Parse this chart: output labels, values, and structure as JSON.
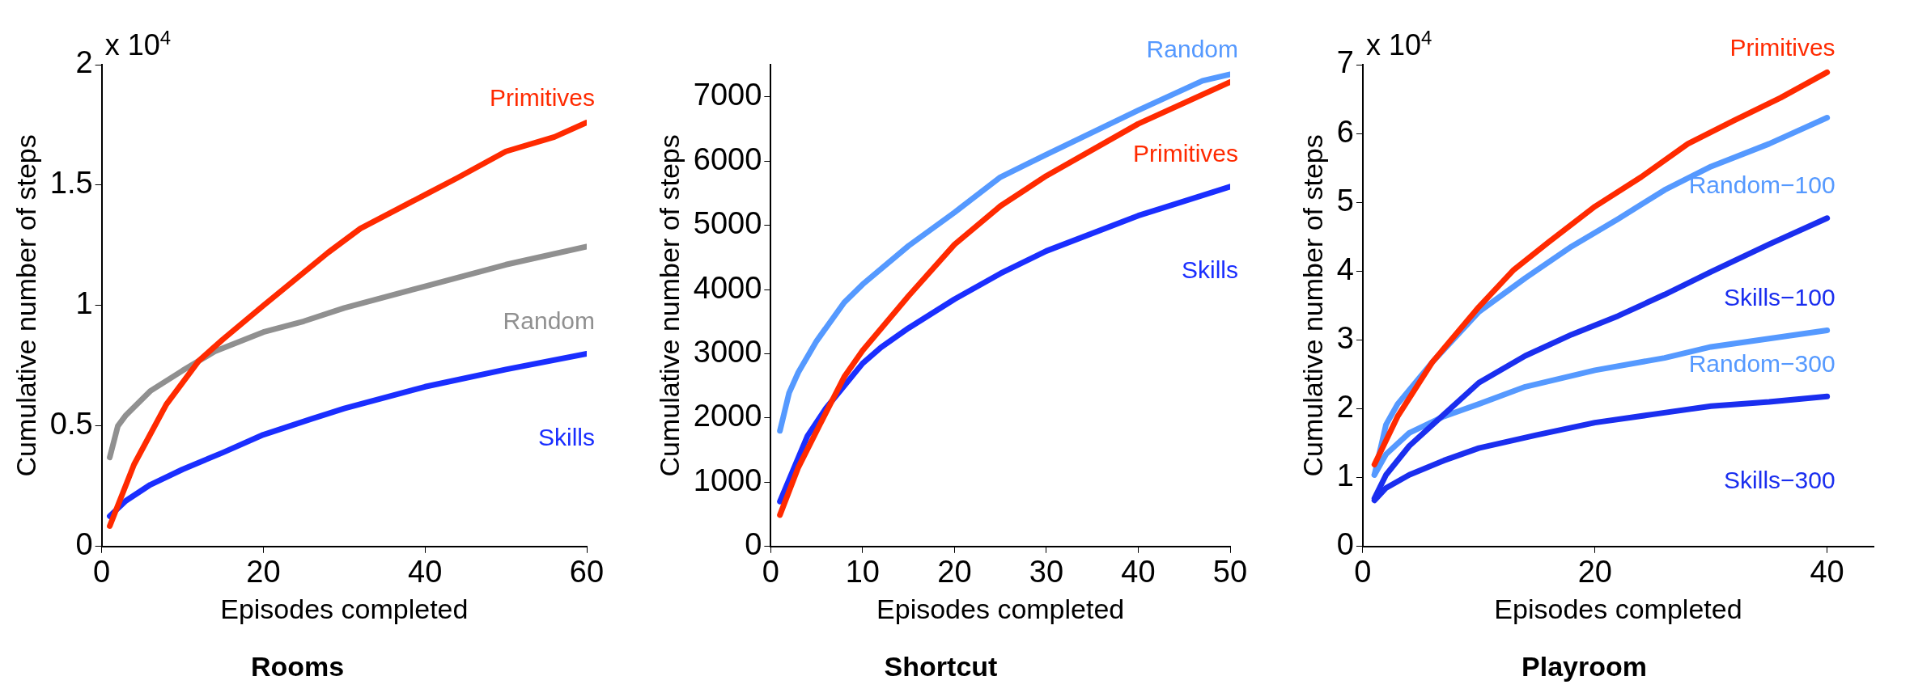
{
  "chart_data": [
    {
      "type": "line",
      "title": "Rooms",
      "xlabel": "Episodes completed",
      "ylabel": "Cumulative number of steps",
      "annotations": [
        "x 10$^{4}$"
      ],
      "xlim": [
        0,
        60
      ],
      "xticks": [
        0,
        20,
        40,
        60
      ],
      "ylim": [
        0,
        2
      ],
      "yticks": [
        0,
        0.5,
        1,
        1.5,
        2
      ],
      "series": [
        {
          "name": "Primitives",
          "color": "#ff2a00",
          "x": [
            1,
            4,
            8,
            12,
            15,
            20,
            28,
            32,
            40,
            44,
            50,
            56,
            60
          ],
          "values": [
            0.085,
            0.34,
            0.59,
            0.77,
            0.86,
            1.0,
            1.22,
            1.32,
            1.46,
            1.53,
            1.64,
            1.7,
            1.76
          ]
        },
        {
          "name": "Random",
          "color": "#909090",
          "x": [
            1,
            2,
            3,
            6,
            10,
            14,
            20,
            25,
            30,
            40,
            50,
            60
          ],
          "values": [
            0.37,
            0.5,
            0.545,
            0.645,
            0.73,
            0.81,
            0.89,
            0.935,
            0.99,
            1.08,
            1.17,
            1.245
          ]
        },
        {
          "name": "Skills",
          "color": "#1a2eff",
          "x": [
            1,
            3,
            6,
            10,
            15,
            20,
            26,
            30,
            40,
            50,
            60
          ],
          "values": [
            0.126,
            0.19,
            0.256,
            0.32,
            0.39,
            0.464,
            0.53,
            0.573,
            0.663,
            0.735,
            0.8
          ]
        }
      ]
    },
    {
      "type": "line",
      "title": "Shortcut",
      "xlabel": "Episodes completed",
      "ylabel": "Cumulative number of steps",
      "xlim": [
        0,
        50
      ],
      "xticks": [
        0,
        10,
        20,
        30,
        40,
        50
      ],
      "ylim": [
        0,
        7500
      ],
      "yticks": [
        0,
        1000,
        2000,
        3000,
        4000,
        5000,
        6000,
        7000
      ],
      "series": [
        {
          "name": "Random",
          "color": "#5599ff",
          "x": [
            1,
            2,
            3,
            5,
            8,
            10,
            15,
            20,
            25,
            30,
            40,
            47,
            50
          ],
          "values": [
            1800,
            2390,
            2710,
            3200,
            3800,
            4080,
            4680,
            5200,
            5750,
            6100,
            6790,
            7250,
            7350
          ]
        },
        {
          "name": "Primitives",
          "color": "#ff2a00",
          "x": [
            1,
            3,
            5,
            8,
            10,
            15,
            20,
            25,
            30,
            40,
            50
          ],
          "values": [
            490,
            1230,
            1800,
            2640,
            3050,
            3900,
            4700,
            5300,
            5770,
            6580,
            7230
          ]
        },
        {
          "name": "Skills",
          "color": "#1a2eff",
          "x": [
            1,
            4,
            6,
            10,
            12,
            15,
            20,
            25,
            30,
            40,
            50
          ],
          "values": [
            700,
            1720,
            2150,
            2850,
            3100,
            3400,
            3850,
            4250,
            4600,
            5150,
            5600
          ]
        }
      ]
    },
    {
      "type": "line",
      "title": "Playroom",
      "xlabel": "Episodes completed",
      "ylabel": "Cumulative number of steps",
      "annotations": [
        "x 10$^{4}$"
      ],
      "xlim": [
        0,
        44
      ],
      "xticks": [
        0,
        20,
        40
      ],
      "ylim": [
        0,
        7
      ],
      "yticks": [
        0,
        1,
        2,
        3,
        4,
        5,
        6,
        7
      ],
      "series": [
        {
          "name": "Primitives",
          "color": "#ff2a00",
          "x": [
            1,
            3,
            6,
            10,
            13,
            16,
            20,
            24,
            28,
            32,
            36,
            40
          ],
          "values": [
            1.19,
            1.89,
            2.68,
            3.48,
            4.02,
            4.42,
            4.94,
            5.37,
            5.85,
            6.19,
            6.52,
            6.89
          ]
        },
        {
          "name": "Random−100",
          "color": "#5599ff",
          "x": [
            1,
            2,
            3,
            6,
            10,
            14,
            18,
            22,
            26,
            30,
            35,
            40
          ],
          "values": [
            1.04,
            1.77,
            2.07,
            2.68,
            3.41,
            3.9,
            4.36,
            4.76,
            5.18,
            5.52,
            5.85,
            6.23
          ]
        },
        {
          "name": "Skills−100",
          "color": "#1a2eef",
          "x": [
            1,
            2,
            4,
            7,
            10,
            14,
            18,
            22,
            26,
            30,
            35,
            40
          ],
          "values": [
            0.7,
            1.04,
            1.46,
            1.92,
            2.38,
            2.77,
            3.08,
            3.35,
            3.66,
            3.99,
            4.39,
            4.77
          ]
        },
        {
          "name": "Random−300",
          "color": "#5599ff",
          "x": [
            1,
            2,
            4,
            7,
            10,
            14,
            20,
            26,
            30,
            35,
            40
          ],
          "values": [
            1.04,
            1.34,
            1.65,
            1.89,
            2.07,
            2.32,
            2.56,
            2.74,
            2.9,
            3.02,
            3.14
          ]
        },
        {
          "name": "Skills−300",
          "color": "#1a2eef",
          "x": [
            1,
            2,
            4,
            7,
            10,
            15,
            20,
            25,
            30,
            35,
            40
          ],
          "values": [
            0.67,
            0.85,
            1.04,
            1.25,
            1.43,
            1.62,
            1.8,
            1.92,
            2.04,
            2.1,
            2.18
          ]
        }
      ]
    }
  ]
}
